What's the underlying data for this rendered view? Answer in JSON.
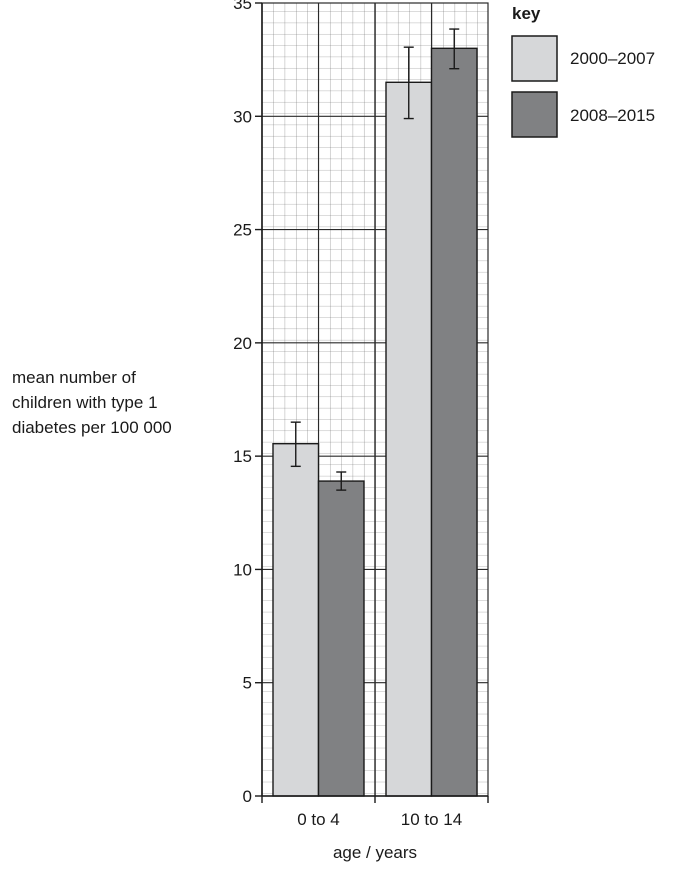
{
  "chart_data": {
    "type": "bar",
    "title": "",
    "ylabel_lines": [
      "mean number of",
      "children with type 1",
      "diabetes per 100 000"
    ],
    "xlabel": "age / years",
    "categories": [
      "0 to 4",
      "10 to 14"
    ],
    "ylim": [
      0,
      35
    ],
    "yticks": [
      0,
      5,
      10,
      15,
      20,
      25,
      30,
      35
    ],
    "grid": true,
    "legend": {
      "title": "key",
      "position": "top-right"
    },
    "series": [
      {
        "name": "2000–2007",
        "color": "#d6d7d9",
        "values": [
          15.55,
          31.5
        ],
        "error_low": [
          14.55,
          29.9
        ],
        "error_high": [
          16.5,
          33.05
        ]
      },
      {
        "name": "2008–2015",
        "color": "#808183",
        "values": [
          13.9,
          33.0
        ],
        "error_low": [
          13.5,
          32.1
        ],
        "error_high": [
          14.3,
          33.85
        ]
      }
    ]
  }
}
